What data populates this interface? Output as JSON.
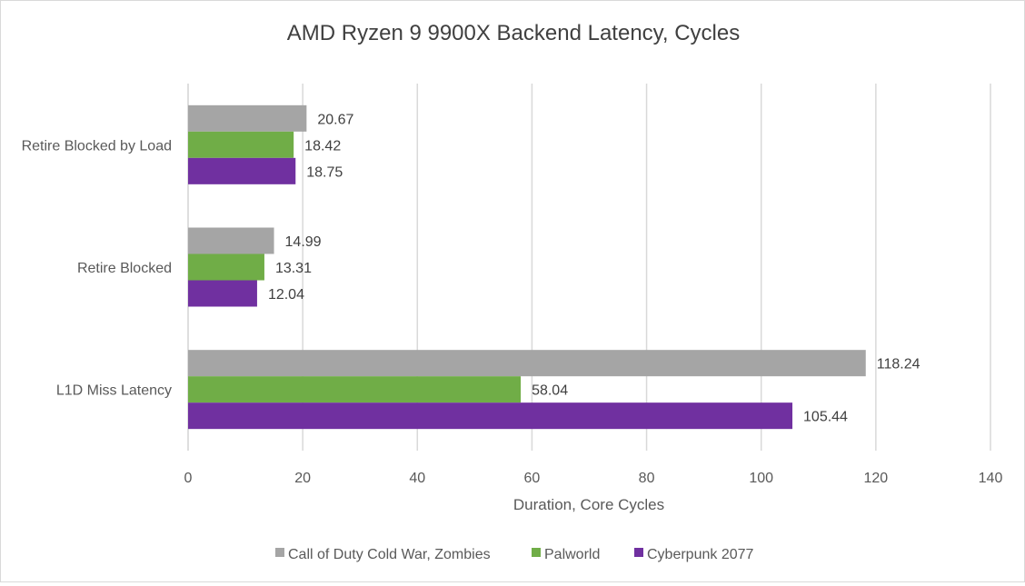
{
  "chart_data": {
    "type": "bar",
    "orientation": "horizontal",
    "title": "AMD Ryzen 9 9900X Backend Latency, Cycles",
    "xlabel": "Duration, Core Cycles",
    "ylabel": "",
    "xlim": [
      0,
      140
    ],
    "xticks": [
      0,
      20,
      40,
      60,
      80,
      100,
      120,
      140
    ],
    "grid": true,
    "legend_position": "bottom",
    "categories": [
      "Retire Blocked by Load",
      "Retire Blocked",
      "L1D Miss Latency"
    ],
    "series": [
      {
        "name": "Call of Duty Cold War, Zombies",
        "color": "#a5a5a5",
        "values": [
          20.67,
          14.99,
          118.24
        ]
      },
      {
        "name": "Palworld",
        "color": "#70ad47",
        "values": [
          18.42,
          13.31,
          58.04
        ]
      },
      {
        "name": "Cyberpunk 2077",
        "color": "#7030a0",
        "values": [
          18.75,
          12.04,
          105.44
        ]
      }
    ]
  }
}
